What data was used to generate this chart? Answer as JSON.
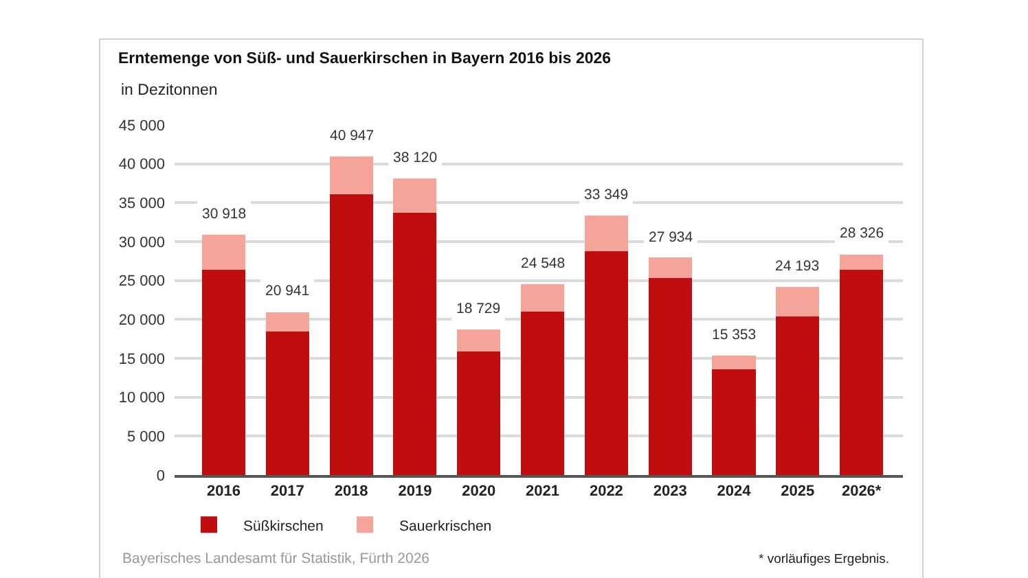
{
  "chart_data": {
    "type": "bar",
    "title": "Erntemenge von Süß- und Sauerkirschen in Bayern 2016 bis 2026",
    "subtitle": "in Dezitonnen",
    "categories": [
      "2016",
      "2017",
      "2018",
      "2019",
      "2020",
      "2021",
      "2022",
      "2023",
      "2024",
      "2025",
      "2026*"
    ],
    "stacked": true,
    "series": [
      {
        "name": "Süßkirschen",
        "color": "#c00e10",
        "values": [
          26400,
          18400,
          36100,
          33700,
          15900,
          21000,
          28800,
          25300,
          13600,
          20400,
          26400
        ]
      },
      {
        "name": "Sauerkrischen",
        "color": "#f4a498",
        "values": [
          4518,
          2541,
          4847,
          4420,
          2829,
          3548,
          4549,
          2634,
          1753,
          3793,
          1926
        ]
      }
    ],
    "totals": [
      "30 918",
      "20 941",
      "40 947",
      "38 120",
      "18 729",
      "24 548",
      "33 349",
      "27 934",
      "15 353",
      "24 193",
      "28 326"
    ],
    "ylim": [
      0,
      45000
    ],
    "yticks": [
      0,
      {
        "value": 5000,
        "label": "5 000"
      },
      {
        "value": 10000,
        "label": "10 000"
      },
      {
        "value": 15000,
        "label": "15 000"
      },
      {
        "value": 20000,
        "label": "20 000"
      },
      {
        "value": 25000,
        "label": "25 000"
      },
      {
        "value": 30000,
        "label": "30 000"
      },
      {
        "value": 35000,
        "label": "35 000"
      },
      {
        "value": 40000,
        "label": "40 000"
      },
      {
        "value": 45000,
        "label": "45 000"
      }
    ],
    "grid": "y",
    "legend": "bottom left",
    "annotations": [
      "Bayerisches Landesamt für Statistik, Fürth 2026",
      "* vorläufiges Ergebnis."
    ]
  }
}
